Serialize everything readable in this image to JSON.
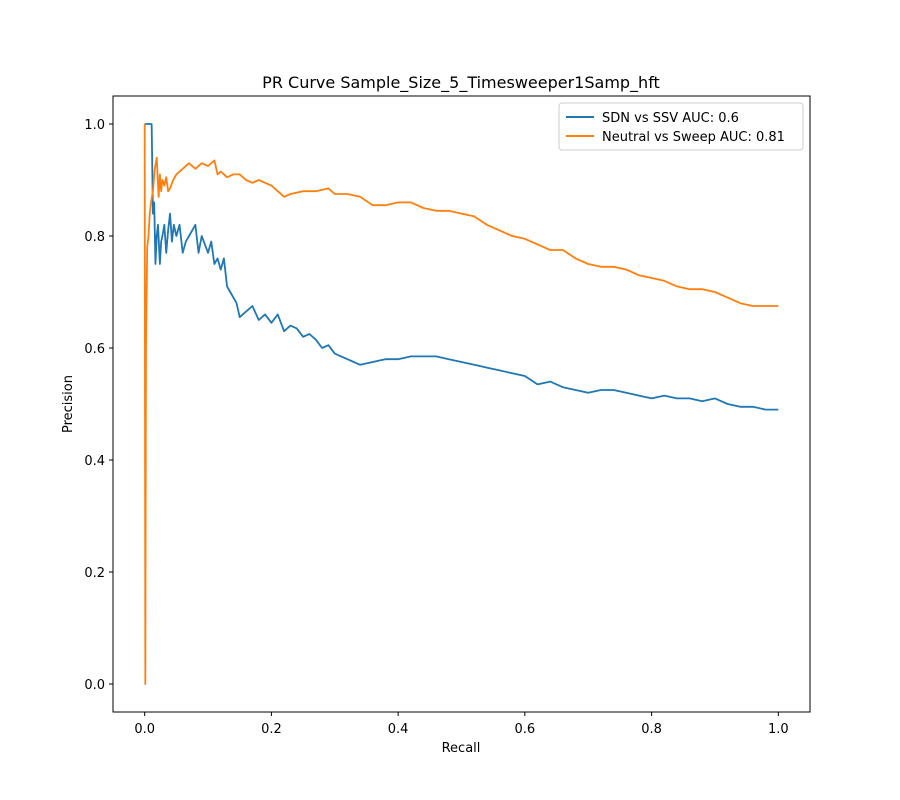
{
  "chart_data": {
    "type": "line",
    "title": "PR Curve Sample_Size_5_Timesweeper1Samp_hft",
    "xlabel": "Recall",
    "ylabel": "Precision",
    "xlim": [
      -0.05,
      1.05
    ],
    "ylim": [
      -0.05,
      1.05
    ],
    "xticks": [
      0.0,
      0.2,
      0.4,
      0.6,
      0.8,
      1.0
    ],
    "yticks": [
      0.0,
      0.2,
      0.4,
      0.6,
      0.8,
      1.0
    ],
    "xtick_labels": [
      "0.0",
      "0.2",
      "0.4",
      "0.6",
      "0.8",
      "1.0"
    ],
    "ytick_labels": [
      "0.0",
      "0.2",
      "0.4",
      "0.6",
      "0.8",
      "1.0"
    ],
    "grid": false,
    "legend_position": "upper right",
    "series": [
      {
        "name": "SDN vs SSV AUC: 0.6",
        "color": "#1f77b4",
        "x": [
          0.0,
          0.001,
          0.003,
          0.005,
          0.008,
          0.011,
          0.013,
          0.015,
          0.017,
          0.019,
          0.021,
          0.024,
          0.026,
          0.028,
          0.031,
          0.034,
          0.037,
          0.04,
          0.043,
          0.046,
          0.05,
          0.055,
          0.06,
          0.065,
          0.07,
          0.075,
          0.08,
          0.085,
          0.09,
          0.1,
          0.105,
          0.11,
          0.115,
          0.12,
          0.125,
          0.13,
          0.135,
          0.14,
          0.145,
          0.15,
          0.16,
          0.17,
          0.18,
          0.19,
          0.2,
          0.21,
          0.22,
          0.23,
          0.24,
          0.25,
          0.26,
          0.27,
          0.28,
          0.29,
          0.3,
          0.31,
          0.32,
          0.33,
          0.34,
          0.36,
          0.38,
          0.4,
          0.42,
          0.44,
          0.46,
          0.48,
          0.5,
          0.52,
          0.54,
          0.56,
          0.58,
          0.6,
          0.62,
          0.64,
          0.66,
          0.68,
          0.7,
          0.72,
          0.74,
          0.76,
          0.78,
          0.8,
          0.82,
          0.84,
          0.86,
          0.88,
          0.9,
          0.92,
          0.94,
          0.96,
          0.98,
          1.0
        ],
        "y": [
          1.0,
          1.0,
          1.0,
          1.0,
          1.0,
          1.0,
          0.84,
          0.86,
          0.75,
          0.8,
          0.82,
          0.75,
          0.79,
          0.8,
          0.82,
          0.77,
          0.81,
          0.84,
          0.79,
          0.82,
          0.8,
          0.82,
          0.77,
          0.79,
          0.8,
          0.81,
          0.82,
          0.77,
          0.8,
          0.77,
          0.79,
          0.75,
          0.76,
          0.74,
          0.76,
          0.71,
          0.7,
          0.69,
          0.68,
          0.655,
          0.665,
          0.675,
          0.65,
          0.66,
          0.645,
          0.66,
          0.63,
          0.64,
          0.635,
          0.62,
          0.625,
          0.615,
          0.6,
          0.605,
          0.59,
          0.585,
          0.58,
          0.575,
          0.57,
          0.575,
          0.58,
          0.58,
          0.585,
          0.585,
          0.585,
          0.58,
          0.575,
          0.57,
          0.565,
          0.56,
          0.555,
          0.55,
          0.535,
          0.54,
          0.53,
          0.525,
          0.52,
          0.525,
          0.525,
          0.52,
          0.515,
          0.51,
          0.515,
          0.51,
          0.51,
          0.505,
          0.51,
          0.5,
          0.495,
          0.495,
          0.49,
          0.49
        ]
      },
      {
        "name": "Neutral vs Sweep AUC: 0.81",
        "color": "#ff7f0e",
        "x": [
          0.0,
          0.001,
          0.002,
          0.004,
          0.006,
          0.008,
          0.01,
          0.013,
          0.016,
          0.019,
          0.022,
          0.024,
          0.026,
          0.028,
          0.031,
          0.034,
          0.037,
          0.04,
          0.045,
          0.05,
          0.06,
          0.07,
          0.08,
          0.09,
          0.1,
          0.11,
          0.115,
          0.12,
          0.13,
          0.14,
          0.15,
          0.16,
          0.17,
          0.18,
          0.19,
          0.2,
          0.21,
          0.22,
          0.23,
          0.25,
          0.27,
          0.29,
          0.3,
          0.32,
          0.34,
          0.36,
          0.38,
          0.4,
          0.42,
          0.44,
          0.46,
          0.48,
          0.5,
          0.52,
          0.54,
          0.56,
          0.58,
          0.6,
          0.62,
          0.64,
          0.66,
          0.68,
          0.7,
          0.72,
          0.74,
          0.76,
          0.78,
          0.8,
          0.82,
          0.84,
          0.86,
          0.88,
          0.9,
          0.92,
          0.94,
          0.96,
          0.98,
          1.0
        ],
        "y": [
          1.0,
          0.0,
          0.6,
          0.78,
          0.8,
          0.84,
          0.86,
          0.88,
          0.92,
          0.94,
          0.87,
          0.91,
          0.88,
          0.9,
          0.89,
          0.905,
          0.88,
          0.885,
          0.9,
          0.91,
          0.92,
          0.93,
          0.92,
          0.93,
          0.925,
          0.935,
          0.91,
          0.915,
          0.905,
          0.91,
          0.91,
          0.9,
          0.895,
          0.9,
          0.895,
          0.89,
          0.88,
          0.87,
          0.875,
          0.88,
          0.88,
          0.885,
          0.875,
          0.875,
          0.87,
          0.855,
          0.855,
          0.86,
          0.86,
          0.85,
          0.845,
          0.845,
          0.84,
          0.835,
          0.82,
          0.81,
          0.8,
          0.795,
          0.785,
          0.775,
          0.775,
          0.76,
          0.75,
          0.745,
          0.745,
          0.74,
          0.73,
          0.725,
          0.72,
          0.71,
          0.705,
          0.705,
          0.7,
          0.69,
          0.68,
          0.675,
          0.675,
          0.675
        ]
      }
    ]
  }
}
